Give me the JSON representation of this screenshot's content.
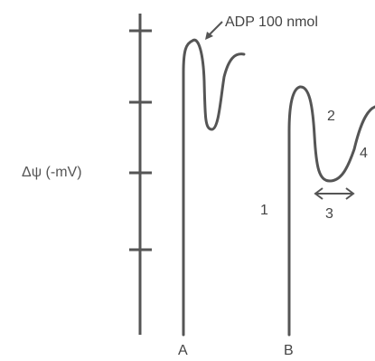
{
  "chart_data": {
    "type": "line",
    "ylabel": "Δψ (-mV)",
    "xlabel": "",
    "grid": false,
    "axis": {
      "tick_count": 5,
      "tick_labels": []
    },
    "series": [
      {
        "name": "A",
        "label": "A"
      },
      {
        "name": "B",
        "label": "B"
      }
    ],
    "annotations": {
      "adp": "ADP 100 nmol",
      "phase_1": "1",
      "phase_2": "2",
      "phase_3": "3",
      "phase_4": "4"
    },
    "colors": {
      "trace": "#555555",
      "axis": "#555555",
      "text": "#444444"
    }
  }
}
